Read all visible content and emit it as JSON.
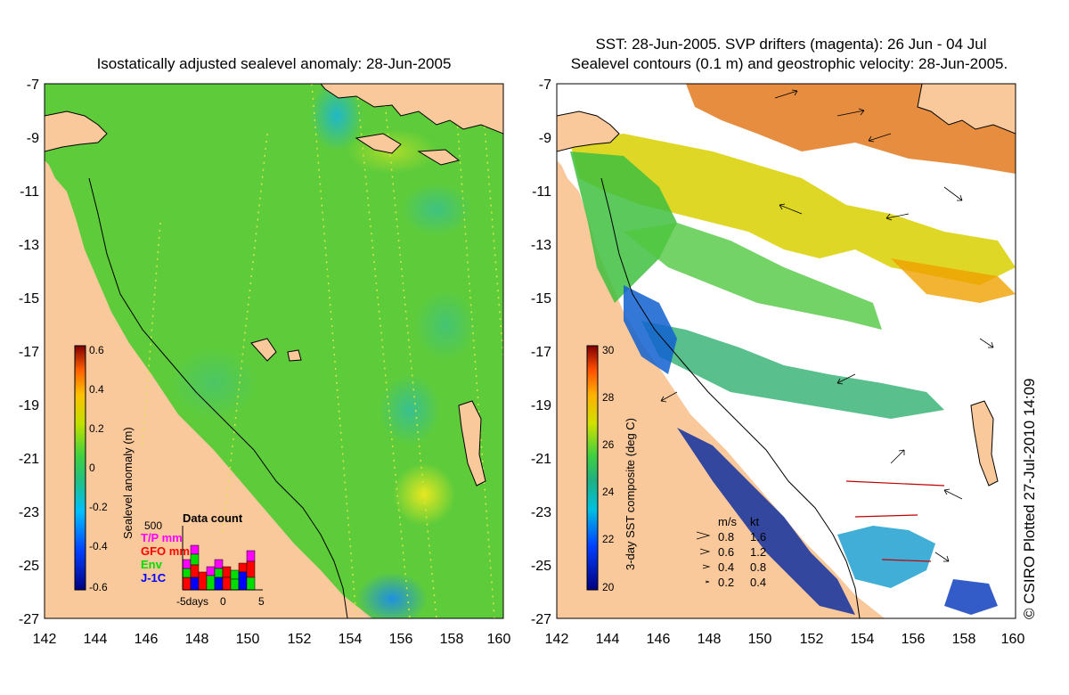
{
  "left_panel": {
    "title": "Isostatically adjusted sealevel anomaly: 28-Jun-2005",
    "colorbar": {
      "label": "Sealevel anomaly (m)",
      "ticks": [
        "0.6",
        "0.4",
        "0.2",
        "0",
        "-0.2",
        "-0.4",
        "-0.6"
      ]
    },
    "data_count": {
      "title": "Data count",
      "max_label": "500",
      "legend": [
        {
          "label": "T/P mm",
          "color": "#ff00ff"
        },
        {
          "label": "GFO mm",
          "color": "#ff0000"
        },
        {
          "label": "Env",
          "color": "#00dd00"
        },
        {
          "label": "J-1C",
          "color": "#0000ff"
        }
      ],
      "axis_labels": [
        "-5days",
        "0",
        "5"
      ]
    }
  },
  "right_panel": {
    "title_line1": "SST: 28-Jun-2005. SVP drifters (magenta): 26 Jun - 04 Jul",
    "title_line2": "Sealevel contours (0.1 m) and geostrophic velocity: 28-Jun-2005.",
    "colorbar": {
      "label": "3-day SST composite (deg C)",
      "ticks": [
        "30",
        "28",
        "26",
        "24",
        "22",
        "20"
      ]
    },
    "speed_legend": {
      "header_ms": "m/s",
      "header_kt": "kt",
      "rows": [
        {
          "ms": "0.8",
          "kt": "1.6"
        },
        {
          "ms": "0.6",
          "kt": "1.2"
        },
        {
          "ms": "0.4",
          "kt": "0.8"
        },
        {
          "ms": "0.2",
          "kt": "0.4"
        }
      ]
    }
  },
  "axes": {
    "lat_ticks": [
      "-7",
      "-9",
      "-11",
      "-13",
      "-15",
      "-17",
      "-19",
      "-21",
      "-23",
      "-25",
      "-27"
    ],
    "lon_ticks": [
      "142",
      "144",
      "146",
      "148",
      "150",
      "152",
      "154",
      "156",
      "158",
      "160"
    ]
  },
  "credit": "© CSIRO Plotted 27-Jul-2010 14:09",
  "colors": {
    "land": "#f9c89b",
    "sealevel_base": "#5ecc3a",
    "coast": "#000000",
    "sst_blank": "#ffffff"
  }
}
